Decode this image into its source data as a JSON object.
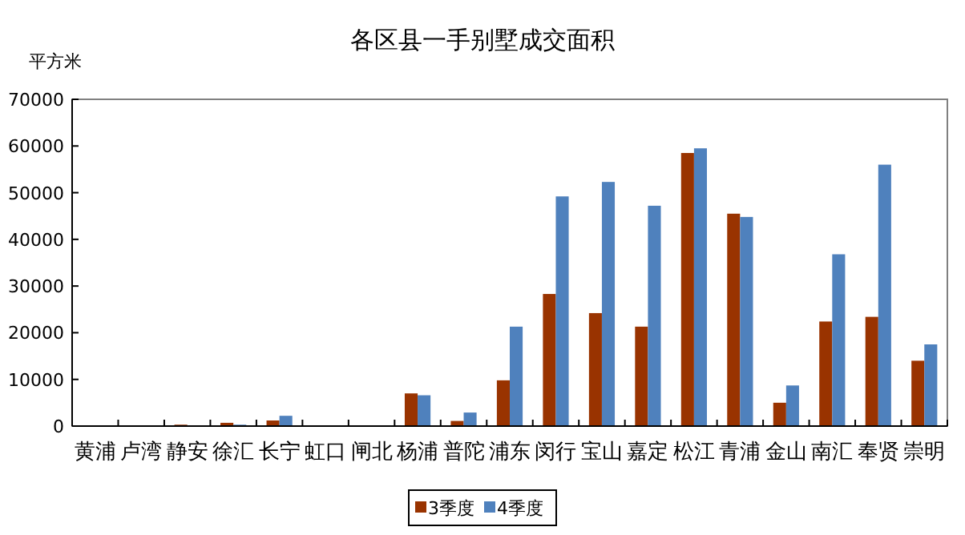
{
  "chart_data": {
    "type": "bar",
    "title": "各区县一手别墅成交面积",
    "ylabel": "平方米",
    "categories": [
      "黄浦",
      "卢湾",
      "静安",
      "徐汇",
      "长宁",
      "虹口",
      "闸北",
      "杨浦",
      "普陀",
      "浦东",
      "闵行",
      "宝山",
      "嘉定",
      "松江",
      "青浦",
      "金山",
      "南汇",
      "奉贤",
      "崇明"
    ],
    "series": [
      {
        "name": "3季度",
        "color": "#993300",
        "values": [
          0,
          0,
          300,
          700,
          1200,
          0,
          0,
          7000,
          1100,
          9800,
          28300,
          24200,
          21300,
          58500,
          45500,
          5000,
          22400,
          23400,
          14000
        ]
      },
      {
        "name": "4季度",
        "color": "#4f81bd",
        "values": [
          0,
          0,
          0,
          300,
          2200,
          0,
          0,
          6600,
          2900,
          21300,
          49200,
          52300,
          47200,
          59500,
          44800,
          8700,
          36800,
          56000,
          17500
        ]
      }
    ],
    "ylim": [
      0,
      70000
    ],
    "yticks": [
      0,
      10000,
      20000,
      30000,
      40000,
      50000,
      60000,
      70000
    ],
    "grid": false,
    "legend": "bottom"
  }
}
